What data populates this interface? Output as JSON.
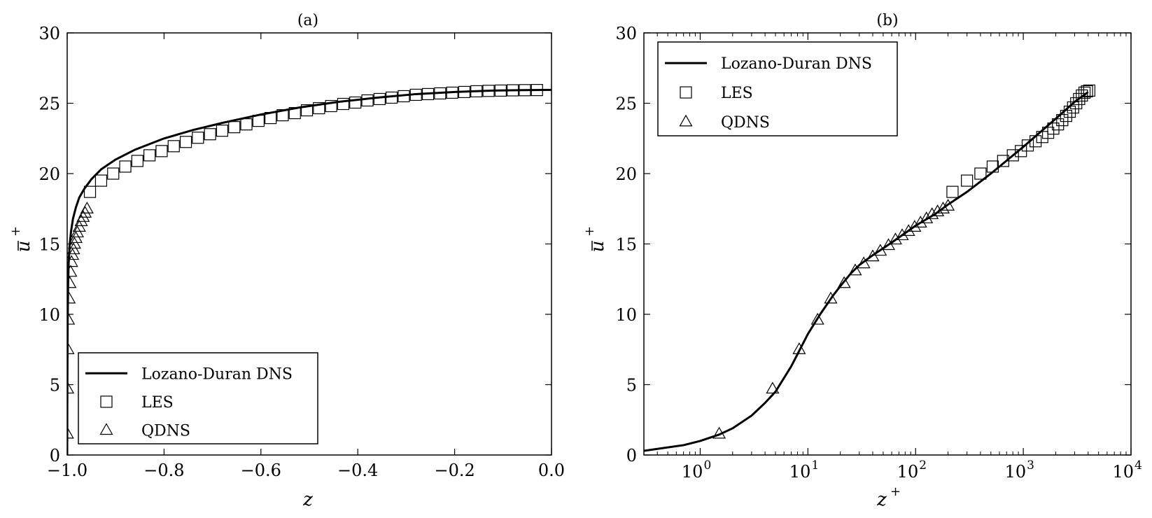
{
  "panels": [
    {
      "title": "(a)",
      "xlabel": "z",
      "ylabel": "u",
      "ylabel_sup": "+",
      "xscale": "linear",
      "xlim": [
        -1.0,
        0.0
      ],
      "ylim": [
        0,
        30
      ],
      "xticks": [
        -1.0,
        -0.8,
        -0.6,
        -0.4,
        -0.2,
        0.0
      ],
      "xtick_labels": [
        "−1.0",
        "−0.8",
        "−0.6",
        "−0.4",
        "−0.2",
        "0.0"
      ],
      "yticks": [
        0,
        5,
        10,
        15,
        20,
        25,
        30
      ],
      "ytick_labels": [
        "0",
        "5",
        "10",
        "15",
        "20",
        "25",
        "30"
      ],
      "legend_position": "lower-right",
      "legend": [
        "Lozano-Duran DNS",
        "LES",
        "QDNS"
      ]
    },
    {
      "title": "(b)",
      "xlabel": "z",
      "xlabel_sup": "+",
      "ylabel": "u",
      "ylabel_sup": "+",
      "xscale": "log",
      "xlim": [
        0.3,
        10000
      ],
      "ylim": [
        0,
        30
      ],
      "xticks": [
        1,
        10,
        100,
        1000,
        10000
      ],
      "xtick_base": "10",
      "xtick_exponents": [
        "0",
        "1",
        "2",
        "3",
        "4"
      ],
      "yticks": [
        0,
        5,
        10,
        15,
        20,
        25,
        30
      ],
      "ytick_labels": [
        "0",
        "5",
        "10",
        "15",
        "20",
        "25",
        "30"
      ],
      "legend_position": "upper-left",
      "legend": [
        "Lozano-Duran DNS",
        "LES",
        "QDNS"
      ]
    }
  ],
  "chart_data": [
    {
      "type": "line",
      "title": "(a)",
      "xlabel": "z",
      "ylabel": "u+",
      "xlim": [
        -1.0,
        0.0
      ],
      "ylim": [
        0,
        30
      ],
      "grid": false,
      "legend_position": "lower-right",
      "series": [
        {
          "name": "Lozano-Duran DNS",
          "style": "line",
          "x": [
            -1.0,
            -0.9999,
            -0.9998,
            -0.9996,
            -0.9993,
            -0.999,
            -0.998,
            -0.997,
            -0.995,
            -0.992,
            -0.988,
            -0.982,
            -0.975,
            -0.965,
            -0.95,
            -0.93,
            -0.9,
            -0.86,
            -0.8,
            -0.74,
            -0.68,
            -0.6,
            -0.52,
            -0.44,
            -0.36,
            -0.28,
            -0.2,
            -0.12,
            -0.06,
            0.0
          ],
          "y": [
            0,
            1.5,
            3,
            5,
            7.5,
            9.5,
            12.2,
            13.6,
            14.9,
            15.9,
            16.8,
            17.6,
            18.3,
            18.9,
            19.6,
            20.3,
            21.0,
            21.7,
            22.5,
            23.1,
            23.6,
            24.2,
            24.7,
            25.1,
            25.4,
            25.65,
            25.8,
            25.9,
            25.93,
            25.95
          ]
        },
        {
          "name": "LES",
          "style": "square",
          "x": [
            -0.953,
            -0.93,
            -0.905,
            -0.88,
            -0.855,
            -0.83,
            -0.805,
            -0.78,
            -0.755,
            -0.73,
            -0.705,
            -0.68,
            -0.655,
            -0.63,
            -0.605,
            -0.58,
            -0.555,
            -0.53,
            -0.505,
            -0.48,
            -0.455,
            -0.43,
            -0.405,
            -0.38,
            -0.355,
            -0.33,
            -0.305,
            -0.28,
            -0.255,
            -0.23,
            -0.205,
            -0.18,
            -0.155,
            -0.13,
            -0.105,
            -0.08,
            -0.055,
            -0.03
          ],
          "y": [
            18.7,
            19.5,
            20.0,
            20.5,
            20.9,
            21.3,
            21.6,
            21.95,
            22.25,
            22.55,
            22.8,
            23.05,
            23.3,
            23.5,
            23.75,
            23.95,
            24.15,
            24.3,
            24.5,
            24.65,
            24.8,
            24.95,
            25.05,
            25.2,
            25.3,
            25.4,
            25.5,
            25.6,
            25.65,
            25.7,
            25.75,
            25.8,
            25.85,
            25.88,
            25.9,
            25.92,
            25.93,
            25.94
          ]
        },
        {
          "name": "QDNS",
          "style": "triangle",
          "x": [
            -0.9997,
            -0.9991,
            -0.9985,
            -0.9975,
            -0.996,
            -0.9945,
            -0.993,
            -0.991,
            -0.989,
            -0.987,
            -0.985,
            -0.982,
            -0.979,
            -0.975,
            -0.971,
            -0.967,
            -0.963,
            -0.959
          ],
          "y": [
            1.5,
            4.7,
            7.5,
            9.6,
            11.1,
            12.2,
            13.0,
            13.7,
            14.2,
            14.6,
            15.0,
            15.4,
            15.8,
            16.2,
            16.6,
            16.9,
            17.2,
            17.5
          ]
        }
      ]
    },
    {
      "type": "line",
      "title": "(b)",
      "xlabel": "z+",
      "ylabel": "u+",
      "xscale": "log",
      "xlim": [
        0.3,
        10000
      ],
      "ylim": [
        0,
        30
      ],
      "grid": false,
      "legend_position": "upper-left",
      "series": [
        {
          "name": "Lozano-Duran DNS",
          "style": "line",
          "x": [
            0.3,
            0.7,
            1.0,
            1.5,
            2.0,
            3.0,
            4.0,
            5.0,
            7.0,
            10,
            13,
            17,
            20,
            25,
            30,
            40,
            60,
            100,
            150,
            200,
            300,
            500,
            1000,
            2000,
            3000,
            4000
          ],
          "y": [
            0.3,
            0.7,
            1.0,
            1.45,
            1.9,
            2.8,
            3.7,
            4.5,
            6.3,
            8.6,
            10.0,
            11.3,
            12.0,
            12.9,
            13.5,
            14.2,
            15.1,
            16.3,
            17.1,
            17.8,
            18.7,
            20.0,
            21.9,
            23.9,
            25.1,
            25.8
          ]
        },
        {
          "name": "LES",
          "style": "square",
          "x": [
            220,
            300,
            400,
            520,
            650,
            800,
            950,
            1100,
            1300,
            1500,
            1700,
            1900,
            2100,
            2300,
            2500,
            2700,
            2900,
            3100,
            3300,
            3500,
            3700,
            3900,
            4100
          ],
          "y": [
            18.7,
            19.5,
            20.0,
            20.5,
            20.9,
            21.3,
            21.6,
            22.0,
            22.3,
            22.6,
            22.9,
            23.2,
            23.5,
            23.8,
            24.1,
            24.4,
            24.7,
            25.0,
            25.3,
            25.55,
            25.75,
            25.85,
            25.9
          ]
        },
        {
          "name": "QDNS",
          "style": "triangle",
          "x": [
            1.5,
            4.7,
            8.3,
            12.3,
            16.3,
            21.7,
            27.5,
            33,
            40,
            47,
            56,
            65,
            75,
            86,
            98,
            111,
            126,
            142,
            160,
            180,
            200
          ],
          "y": [
            1.5,
            4.7,
            7.5,
            9.6,
            11.1,
            12.2,
            13.1,
            13.6,
            14.1,
            14.5,
            14.9,
            15.3,
            15.6,
            15.9,
            16.2,
            16.5,
            16.8,
            17.1,
            17.3,
            17.5,
            17.7
          ]
        }
      ]
    }
  ]
}
